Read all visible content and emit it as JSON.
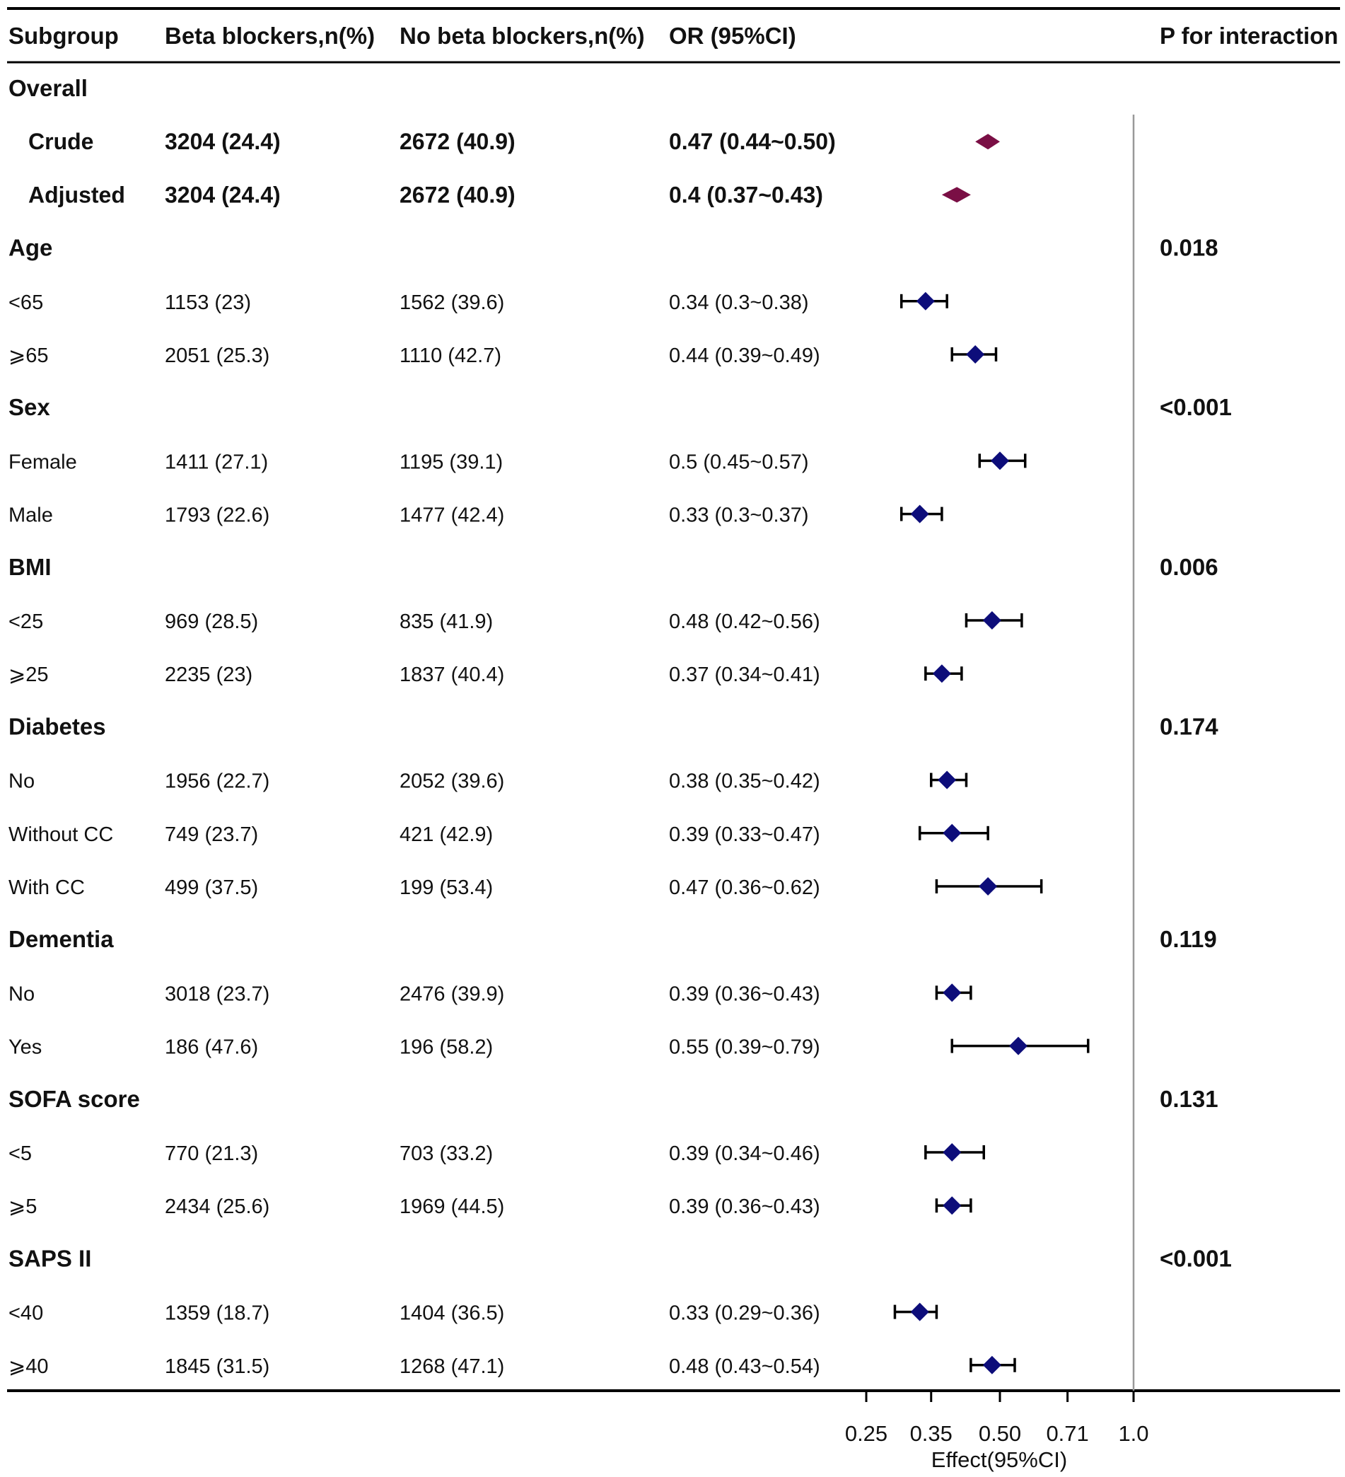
{
  "chart_data": {
    "type": "forest",
    "xlabel": "Effect(95%CI)",
    "x_scale": "log",
    "ticks": [
      0.25,
      0.35,
      0.5,
      0.71,
      1.0
    ],
    "tick_labels": [
      "0.25",
      "0.35",
      "0.50",
      "0.71",
      "1.0"
    ],
    "reference_line": 1.0,
    "headers": {
      "subgroup": "Subgroup",
      "beta": "Beta blockers,n(%)",
      "nobeta": "No beta blockers,n(%)",
      "or": "OR (95%CI)",
      "p": "P for interaction"
    },
    "rows": [
      {
        "type": "group",
        "label": "Overall",
        "p": ""
      },
      {
        "type": "overall",
        "label": "Crude",
        "beta": "3204 (24.4)",
        "nobeta": "2672 (40.9)",
        "or": "0.47 (0.44~0.50)",
        "est": 0.47,
        "lo": 0.44,
        "hi": 0.5
      },
      {
        "type": "overall",
        "label": "Adjusted",
        "beta": "3204 (24.4)",
        "nobeta": "2672 (40.9)",
        "or": "0.4 (0.37~0.43)",
        "est": 0.4,
        "lo": 0.37,
        "hi": 0.43
      },
      {
        "type": "group",
        "label": "Age",
        "p": "0.018"
      },
      {
        "type": "sub",
        "label": "<65",
        "beta": "1153 (23)",
        "nobeta": "1562 (39.6)",
        "or": "0.34 (0.3~0.38)",
        "est": 0.34,
        "lo": 0.3,
        "hi": 0.38
      },
      {
        "type": "sub",
        "label": "⩾65",
        "beta": "2051 (25.3)",
        "nobeta": "1110 (42.7)",
        "or": "0.44 (0.39~0.49)",
        "est": 0.44,
        "lo": 0.39,
        "hi": 0.49
      },
      {
        "type": "group",
        "label": "Sex",
        "p": "<0.001"
      },
      {
        "type": "sub",
        "label": "Female",
        "beta": "1411 (27.1)",
        "nobeta": "1195 (39.1)",
        "or": "0.5 (0.45~0.57)",
        "est": 0.5,
        "lo": 0.45,
        "hi": 0.57
      },
      {
        "type": "sub",
        "label": "Male",
        "beta": "1793 (22.6)",
        "nobeta": "1477 (42.4)",
        "or": "0.33 (0.3~0.37)",
        "est": 0.33,
        "lo": 0.3,
        "hi": 0.37
      },
      {
        "type": "group",
        "label": "BMI",
        "p": "0.006"
      },
      {
        "type": "sub",
        "label": "<25",
        "beta": "969 (28.5)",
        "nobeta": "835 (41.9)",
        "or": "0.48 (0.42~0.56)",
        "est": 0.48,
        "lo": 0.42,
        "hi": 0.56
      },
      {
        "type": "sub",
        "label": "⩾25",
        "beta": "2235 (23)",
        "nobeta": "1837 (40.4)",
        "or": "0.37 (0.34~0.41)",
        "est": 0.37,
        "lo": 0.34,
        "hi": 0.41
      },
      {
        "type": "group",
        "label": "Diabetes",
        "p": "0.174"
      },
      {
        "type": "sub",
        "label": "No",
        "beta": "1956 (22.7)",
        "nobeta": "2052 (39.6)",
        "or": "0.38 (0.35~0.42)",
        "est": 0.38,
        "lo": 0.35,
        "hi": 0.42
      },
      {
        "type": "sub",
        "label": "Without CC",
        "beta": "749 (23.7)",
        "nobeta": "421 (42.9)",
        "or": "0.39 (0.33~0.47)",
        "est": 0.39,
        "lo": 0.33,
        "hi": 0.47
      },
      {
        "type": "sub",
        "label": "With CC",
        "beta": "499 (37.5)",
        "nobeta": "199 (53.4)",
        "or": "0.47 (0.36~0.62)",
        "est": 0.47,
        "lo": 0.36,
        "hi": 0.62
      },
      {
        "type": "group",
        "label": "Dementia",
        "p": "0.119"
      },
      {
        "type": "sub",
        "label": "No",
        "beta": "3018 (23.7)",
        "nobeta": "2476 (39.9)",
        "or": "0.39 (0.36~0.43)",
        "est": 0.39,
        "lo": 0.36,
        "hi": 0.43
      },
      {
        "type": "sub",
        "label": "Yes",
        "beta": "186 (47.6)",
        "nobeta": "196 (58.2)",
        "or": "0.55 (0.39~0.79)",
        "est": 0.55,
        "lo": 0.39,
        "hi": 0.79
      },
      {
        "type": "group",
        "label": "SOFA score",
        "p": "0.131"
      },
      {
        "type": "sub",
        "label": "<5",
        "beta": "770 (21.3)",
        "nobeta": "703 (33.2)",
        "or": "0.39 (0.34~0.46)",
        "est": 0.39,
        "lo": 0.34,
        "hi": 0.46
      },
      {
        "type": "sub",
        "label": "⩾5",
        "beta": "2434 (25.6)",
        "nobeta": "1969 (44.5)",
        "or": "0.39 (0.36~0.43)",
        "est": 0.39,
        "lo": 0.36,
        "hi": 0.43
      },
      {
        "type": "group",
        "label": "SAPS II",
        "p": "<0.001"
      },
      {
        "type": "sub",
        "label": "<40",
        "beta": "1359 (18.7)",
        "nobeta": "1404 (36.5)",
        "or": "0.33 (0.29~0.36)",
        "est": 0.33,
        "lo": 0.29,
        "hi": 0.36
      },
      {
        "type": "sub",
        "label": "⩾40",
        "beta": "1845 (31.5)",
        "nobeta": "1268 (47.1)",
        "or": "0.48 (0.43~0.54)",
        "est": 0.48,
        "lo": 0.43,
        "hi": 0.54
      }
    ],
    "colors": {
      "overall": "#7a0f45",
      "subgroup": "#0d0d7a",
      "lines": "#000000",
      "ref": "#999999"
    }
  }
}
